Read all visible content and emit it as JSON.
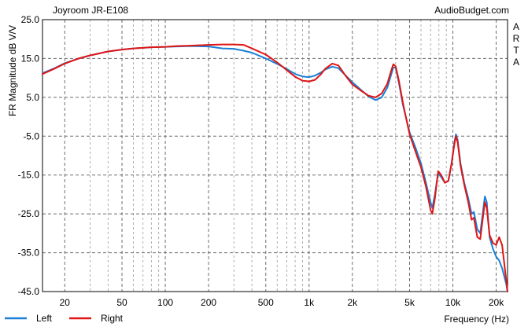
{
  "chart_data": {
    "type": "line",
    "title": "Joyroom JR-E108",
    "watermark": "AudioBudget.com",
    "side_label": "ARTA",
    "xlabel": "Frequency (Hz)",
    "ylabel": "FR Magnitude dB V/V",
    "x_scale": "log",
    "xlim": [
      14,
      24000
    ],
    "ylim": [
      -45,
      25
    ],
    "x_ticks": [
      {
        "value": 20,
        "label": "20"
      },
      {
        "value": 50,
        "label": "50"
      },
      {
        "value": 100,
        "label": "100"
      },
      {
        "value": 200,
        "label": "200"
      },
      {
        "value": 500,
        "label": "500"
      },
      {
        "value": 1000,
        "label": "1k"
      },
      {
        "value": 2000,
        "label": "2k"
      },
      {
        "value": 5000,
        "label": "5k"
      },
      {
        "value": 10000,
        "label": "10k"
      },
      {
        "value": 20000,
        "label": "20k"
      }
    ],
    "y_ticks": [
      {
        "value": 25,
        "label": "25.0"
      },
      {
        "value": 15,
        "label": "15.0"
      },
      {
        "value": 5,
        "label": "5.0"
      },
      {
        "value": -5,
        "label": "-5.0"
      },
      {
        "value": -15,
        "label": "-15.0"
      },
      {
        "value": -25,
        "label": "-25.0"
      },
      {
        "value": -35,
        "label": "-35.0"
      },
      {
        "value": -45,
        "label": "-45.0"
      }
    ],
    "grid": true,
    "legend_position": "bottom-left",
    "series": [
      {
        "name": "Left",
        "color": "#1a7fd4",
        "points": [
          [
            14,
            11.2
          ],
          [
            17,
            12.5
          ],
          [
            20,
            13.8
          ],
          [
            25,
            15.0
          ],
          [
            30,
            15.8
          ],
          [
            40,
            16.8
          ],
          [
            50,
            17.3
          ],
          [
            60,
            17.6
          ],
          [
            80,
            17.9
          ],
          [
            100,
            18.0
          ],
          [
            120,
            18.1
          ],
          [
            150,
            18.2
          ],
          [
            200,
            18.1
          ],
          [
            250,
            17.6
          ],
          [
            300,
            17.5
          ],
          [
            350,
            17.0
          ],
          [
            400,
            16.5
          ],
          [
            500,
            15.0
          ],
          [
            600,
            13.6
          ],
          [
            700,
            12.3
          ],
          [
            800,
            11.0
          ],
          [
            900,
            10.4
          ],
          [
            1000,
            10.2
          ],
          [
            1100,
            10.6
          ],
          [
            1200,
            11.3
          ],
          [
            1300,
            12.2
          ],
          [
            1450,
            12.9
          ],
          [
            1600,
            12.5
          ],
          [
            1800,
            10.6
          ],
          [
            2000,
            8.9
          ],
          [
            2300,
            6.9
          ],
          [
            2600,
            5.2
          ],
          [
            2900,
            4.3
          ],
          [
            3200,
            5.0
          ],
          [
            3500,
            7.5
          ],
          [
            3700,
            10.5
          ],
          [
            3850,
            12.7
          ],
          [
            4000,
            12.6
          ],
          [
            4200,
            9.0
          ],
          [
            4500,
            3.0
          ],
          [
            5000,
            -4.0
          ],
          [
            5500,
            -8.0
          ],
          [
            6000,
            -12.0
          ],
          [
            6500,
            -17.0
          ],
          [
            7000,
            -22.0
          ],
          [
            7200,
            -23.5
          ],
          [
            7500,
            -20.0
          ],
          [
            7900,
            -14.5
          ],
          [
            8300,
            -15.5
          ],
          [
            8800,
            -17.0
          ],
          [
            9300,
            -16.5
          ],
          [
            9800,
            -12.0
          ],
          [
            10200,
            -7.0
          ],
          [
            10500,
            -4.5
          ],
          [
            10800,
            -6.0
          ],
          [
            11300,
            -12.0
          ],
          [
            12000,
            -17.0
          ],
          [
            12800,
            -21.0
          ],
          [
            13500,
            -25.0
          ],
          [
            14000,
            -24.5
          ],
          [
            14800,
            -29.0
          ],
          [
            15500,
            -30.0
          ],
          [
            16300,
            -23.5
          ],
          [
            16700,
            -20.5
          ],
          [
            17200,
            -22.0
          ],
          [
            18000,
            -31.0
          ],
          [
            19000,
            -34.0
          ],
          [
            20000,
            -36.0
          ],
          [
            21000,
            -37.0
          ],
          [
            22000,
            -39.0
          ],
          [
            23500,
            -43.0
          ],
          [
            24000,
            -45.0
          ]
        ]
      },
      {
        "name": "Right",
        "color": "#e01515",
        "points": [
          [
            14,
            11.0
          ],
          [
            17,
            12.4
          ],
          [
            20,
            13.7
          ],
          [
            25,
            15.0
          ],
          [
            30,
            15.8
          ],
          [
            40,
            16.8
          ],
          [
            50,
            17.3
          ],
          [
            60,
            17.6
          ],
          [
            80,
            17.9
          ],
          [
            100,
            18.0
          ],
          [
            120,
            18.2
          ],
          [
            150,
            18.3
          ],
          [
            200,
            18.5
          ],
          [
            250,
            18.6
          ],
          [
            300,
            18.6
          ],
          [
            350,
            18.5
          ],
          [
            400,
            17.6
          ],
          [
            500,
            16.0
          ],
          [
            600,
            14.0
          ],
          [
            700,
            12.0
          ],
          [
            800,
            10.3
          ],
          [
            900,
            9.3
          ],
          [
            1000,
            9.1
          ],
          [
            1100,
            9.5
          ],
          [
            1200,
            10.8
          ],
          [
            1300,
            12.4
          ],
          [
            1450,
            13.7
          ],
          [
            1600,
            13.2
          ],
          [
            1800,
            10.5
          ],
          [
            2000,
            8.3
          ],
          [
            2300,
            6.7
          ],
          [
            2600,
            5.4
          ],
          [
            2900,
            5.0
          ],
          [
            3200,
            6.0
          ],
          [
            3500,
            8.5
          ],
          [
            3700,
            11.5
          ],
          [
            3850,
            13.5
          ],
          [
            4000,
            13.0
          ],
          [
            4200,
            9.5
          ],
          [
            4500,
            3.5
          ],
          [
            5000,
            -4.5
          ],
          [
            5500,
            -9.0
          ],
          [
            6000,
            -13.0
          ],
          [
            6500,
            -18.0
          ],
          [
            7000,
            -24.0
          ],
          [
            7200,
            -25.0
          ],
          [
            7500,
            -21.0
          ],
          [
            7900,
            -14.0
          ],
          [
            8300,
            -15.0
          ],
          [
            8800,
            -17.0
          ],
          [
            9300,
            -16.5
          ],
          [
            9800,
            -12.0
          ],
          [
            10200,
            -7.5
          ],
          [
            10500,
            -5.0
          ],
          [
            10800,
            -6.5
          ],
          [
            11300,
            -12.5
          ],
          [
            12000,
            -17.5
          ],
          [
            12800,
            -22.0
          ],
          [
            13500,
            -26.5
          ],
          [
            14000,
            -26.0
          ],
          [
            14800,
            -31.0
          ],
          [
            15500,
            -31.5
          ],
          [
            16300,
            -25.0
          ],
          [
            16700,
            -22.0
          ],
          [
            17200,
            -23.5
          ],
          [
            18000,
            -30.5
          ],
          [
            19000,
            -32.5
          ],
          [
            20000,
            -33.0
          ],
          [
            21000,
            -31.0
          ],
          [
            22000,
            -33.0
          ],
          [
            23500,
            -42.0
          ],
          [
            24000,
            -45.0
          ]
        ]
      }
    ]
  }
}
